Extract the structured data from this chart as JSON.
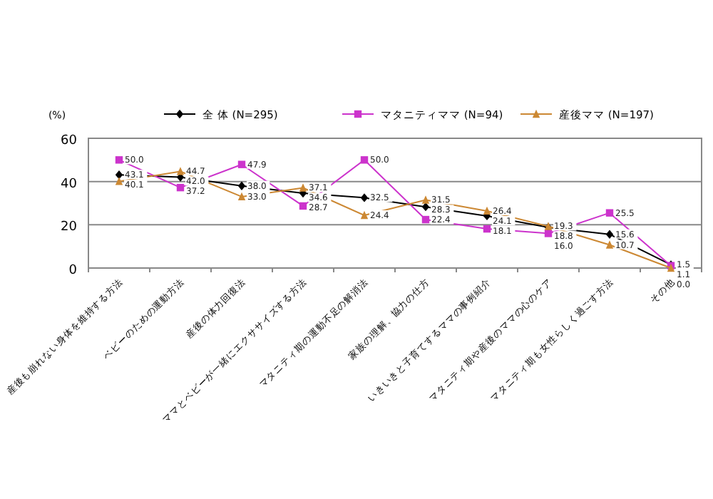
{
  "chart_data": {
    "type": "line",
    "ylabel": "(%)",
    "categories": [
      "産後も崩れない身体を維持する方法",
      "ベビーのための運動方法",
      "産後の体力回復法",
      "ママとベビーが一緒にエクササイズする方法",
      "マタニティ期の運動不足の解消法",
      "家族の理解、協力の仕方",
      "いきいきと子育てするママの事例紹介",
      "マタニティ期や産後のママの心のケア",
      "マタニティ期も女性らしく過ごす方法",
      "その他"
    ],
    "series": [
      {
        "name": "全 体 (N=295)",
        "color": "#000000",
        "marker": "diamond",
        "values": [
          43.1,
          42.0,
          38.0,
          34.6,
          32.5,
          28.3,
          24.1,
          18.8,
          15.6,
          1.5
        ],
        "value_labels": [
          "43.1",
          "42.0",
          "38.0",
          "34.6",
          "32.5",
          "28.3",
          "24.1",
          "18.8",
          "15.6",
          "1.5"
        ]
      },
      {
        "name": "マタニティママ (N=94)",
        "color": "#cc33cc",
        "marker": "square",
        "values": [
          50.0,
          37.2,
          47.9,
          28.7,
          50.0,
          22.4,
          18.1,
          16.0,
          25.5,
          1.1
        ],
        "value_labels": [
          "50.0",
          "37.2",
          "47.9",
          "28.7",
          "50.0",
          "22.4",
          "18.1",
          "16.0",
          "25.5",
          "1.1"
        ]
      },
      {
        "name": "産後ママ (N=197)",
        "color": "#cc8833",
        "marker": "triangle",
        "values": [
          40.1,
          44.7,
          33.0,
          37.1,
          24.4,
          31.5,
          26.4,
          19.3,
          10.7,
          0.0
        ],
        "value_labels": [
          "40.1",
          "44.7",
          "33.0",
          "37.1",
          "24.4",
          "31.5",
          "26.4",
          "19.3",
          "10.7",
          "0.0"
        ]
      }
    ],
    "ylim": [
      0,
      60
    ],
    "yticks": [
      0,
      20,
      40,
      60
    ],
    "grid": "y",
    "legend": "top"
  }
}
